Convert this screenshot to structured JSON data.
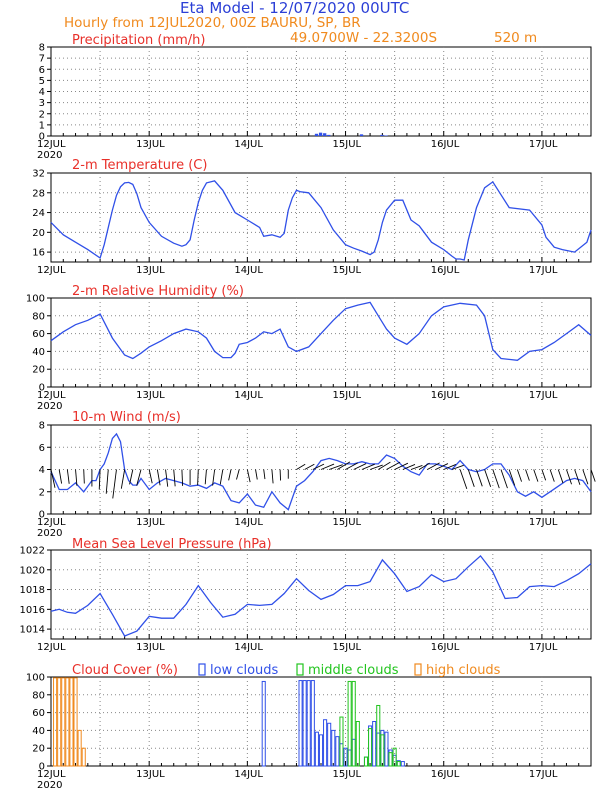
{
  "header": {
    "title": "Eta Model - 12/07/2020 00UTC",
    "line1": "Hourly from 12JUL2020, 00Z  BAURU, SP, BR",
    "coords": "49.0700W - 22.3200S",
    "elevation": "520  m"
  },
  "colors": {
    "blue": "#2b3fd6",
    "orange": "#f08a1e",
    "red": "#e8302a",
    "green": "#22c41e",
    "line": "#3050e8",
    "grid": "#888888"
  },
  "x_axis": {
    "hours_total": 132,
    "day_labels": [
      "12JUL",
      "13JUL",
      "14JUL",
      "15JUL",
      "16JUL",
      "17JUL"
    ],
    "year_label": "2020"
  },
  "chart_data": [
    {
      "id": "precip",
      "type": "bar",
      "title": "Precipitation (mm/h)",
      "ylim": [
        0,
        8
      ],
      "yticks": [
        0,
        1,
        2,
        3,
        4,
        5,
        6,
        7,
        8
      ],
      "bars": [
        [
          65,
          0.2
        ],
        [
          66,
          0.3
        ],
        [
          67,
          0.25
        ],
        [
          68,
          0.1
        ],
        [
          76,
          0.15
        ],
        [
          81,
          0.1
        ],
        [
          82,
          0.05
        ]
      ]
    },
    {
      "id": "temp",
      "type": "line",
      "title": "2-m Temperature (C)",
      "ylim": [
        14,
        32
      ],
      "yticks": [
        16,
        20,
        24,
        28,
        32
      ],
      "x": [
        0,
        3,
        6,
        9,
        12,
        13,
        14,
        15,
        16,
        17,
        18,
        19,
        20,
        21,
        22,
        24,
        27,
        30,
        32,
        33,
        34,
        35,
        36,
        37,
        38,
        40,
        42,
        45,
        48,
        50,
        51,
        52,
        54,
        56,
        57,
        58,
        59,
        60,
        61,
        63,
        66,
        69,
        72,
        74,
        76,
        78,
        79,
        80,
        81,
        82,
        84,
        86,
        88,
        90,
        93,
        96,
        98,
        99,
        100,
        101,
        102,
        104,
        106,
        108,
        112,
        117,
        120,
        121,
        122,
        123,
        125,
        128,
        131,
        132
      ],
      "values": [
        22,
        19.5,
        18,
        16.5,
        14.8,
        17.5,
        21,
        24.5,
        27.5,
        29.2,
        30,
        30.1,
        29.7,
        27.8,
        25,
        22,
        19.2,
        17.8,
        17.2,
        17.5,
        18.5,
        22.5,
        26,
        28.5,
        30,
        30.4,
        28.5,
        24,
        22.5,
        21.5,
        21,
        19.2,
        19.5,
        19,
        19.8,
        24.5,
        27,
        28.5,
        28.2,
        28,
        25,
        20.5,
        17.5,
        16.8,
        16.2,
        15.5,
        16,
        18.5,
        22,
        24.5,
        26.5,
        26.5,
        22.5,
        21.3,
        18,
        16.5,
        15.2,
        14.6,
        14.6,
        14.4,
        18.5,
        25,
        29,
        30.2,
        25,
        24.5,
        21.5,
        19,
        18,
        17,
        16.5,
        16,
        18,
        20.5
      ]
    },
    {
      "id": "rh",
      "type": "line",
      "title": "2-m Relative Humidity (%)",
      "ylim": [
        0,
        100
      ],
      "yticks": [
        0,
        20,
        40,
        60,
        80,
        100
      ],
      "x": [
        0,
        3,
        6,
        9,
        12,
        15,
        18,
        20,
        22,
        24,
        27,
        30,
        33,
        36,
        38,
        40,
        42,
        44,
        45,
        46,
        48,
        50,
        52,
        54,
        56,
        58,
        60,
        63,
        66,
        69,
        72,
        75,
        78,
        80,
        82,
        84,
        87,
        90,
        93,
        96,
        100,
        104,
        106,
        108,
        110,
        114,
        117,
        120,
        123,
        126,
        129,
        132
      ],
      "values": [
        52,
        62,
        70,
        75,
        82,
        55,
        36,
        32,
        38,
        45,
        52,
        60,
        65,
        62,
        55,
        40,
        33,
        33,
        38,
        48,
        50,
        55,
        62,
        60,
        65,
        45,
        40,
        45,
        60,
        75,
        88,
        92,
        95,
        80,
        65,
        55,
        48,
        60,
        80,
        90,
        94,
        92,
        80,
        42,
        32,
        30,
        40,
        42,
        50,
        60,
        70,
        58
      ]
    },
    {
      "id": "wind",
      "type": "line",
      "title": "10-m Wind (m/s)",
      "ylim": [
        0,
        8
      ],
      "yticks": [
        0,
        2,
        4,
        6,
        8
      ],
      "x": [
        0,
        2,
        4,
        6,
        8,
        9,
        10,
        11,
        12,
        13,
        14,
        15,
        16,
        17,
        18,
        19,
        20,
        21,
        22,
        24,
        26,
        28,
        30,
        32,
        34,
        36,
        38,
        40,
        42,
        44,
        46,
        48,
        50,
        52,
        54,
        56,
        58,
        60,
        62,
        64,
        66,
        68,
        70,
        72,
        74,
        76,
        78,
        80,
        82,
        84,
        86,
        88,
        90,
        92,
        94,
        96,
        98,
        100,
        102,
        104,
        106,
        108,
        110,
        112,
        114,
        116,
        118,
        120,
        122,
        124,
        126,
        128,
        130,
        132
      ],
      "values": [
        3.8,
        2.2,
        2.2,
        2.8,
        2.0,
        2.5,
        3.0,
        3.0,
        4.0,
        4.5,
        5.5,
        6.8,
        7.2,
        6.5,
        4.0,
        3.0,
        2.6,
        2.6,
        3.2,
        2.2,
        2.8,
        3.2,
        3.0,
        2.8,
        2.5,
        2.6,
        2.3,
        2.8,
        2.5,
        1.2,
        1.0,
        1.8,
        0.8,
        0.6,
        2.0,
        1.0,
        0.4,
        2.5,
        3.0,
        3.8,
        4.8,
        5.0,
        4.8,
        4.5,
        4.5,
        4.7,
        4.5,
        4.5,
        5.3,
        5.0,
        4.3,
        3.8,
        3.5,
        4.5,
        4.5,
        4.3,
        4.0,
        4.8,
        4.0,
        3.8,
        4.0,
        4.5,
        4.5,
        3.5,
        2.0,
        1.6,
        2.0,
        1.5,
        2.0,
        2.5,
        3.0,
        3.2,
        3.0,
        2.0
      ]
    },
    {
      "id": "mslp",
      "type": "line",
      "title": "Mean Sea Level Pressure (hPa)",
      "ylim": [
        1013,
        1022
      ],
      "yticks": [
        1014,
        1016,
        1018,
        1020,
        1022
      ],
      "x": [
        0,
        2,
        4,
        6,
        9,
        12,
        15,
        18,
        21,
        24,
        27,
        30,
        33,
        36,
        39,
        42,
        45,
        48,
        51,
        54,
        57,
        60,
        63,
        66,
        69,
        72,
        75,
        78,
        81,
        84,
        87,
        90,
        93,
        96,
        99,
        102,
        105,
        108,
        111,
        114,
        117,
        120,
        123,
        126,
        129,
        132
      ],
      "values": [
        1015.8,
        1016,
        1015.7,
        1015.6,
        1016.4,
        1017.6,
        1015.5,
        1013.3,
        1013.8,
        1015.3,
        1015.1,
        1015.1,
        1016.5,
        1018.4,
        1016.7,
        1015.2,
        1015.5,
        1016.5,
        1016.4,
        1016.5,
        1017.6,
        1019.1,
        1017.9,
        1017,
        1017.5,
        1018.4,
        1018.4,
        1018.8,
        1021,
        1019.6,
        1017.8,
        1018.3,
        1019.5,
        1018.8,
        1019.1,
        1020.3,
        1021.4,
        1019.8,
        1017.1,
        1017.2,
        1018.3,
        1018.4,
        1018.3,
        1018.9,
        1019.6,
        1020.6
      ]
    },
    {
      "id": "cloud",
      "type": "bar",
      "title": "Cloud Cover (%)",
      "legend": {
        "low": "low clouds",
        "middle": "middle clouds",
        "high": "high clouds"
      },
      "ylim": [
        0,
        100
      ],
      "yticks": [
        0,
        20,
        40,
        60,
        80,
        100
      ],
      "bars": {
        "high": [
          [
            1,
            99
          ],
          [
            2,
            99
          ],
          [
            3,
            99
          ],
          [
            4,
            99
          ],
          [
            5,
            99
          ],
          [
            6,
            99
          ],
          [
            7,
            40
          ],
          [
            8,
            20
          ]
        ],
        "low": [
          [
            52,
            95
          ],
          [
            61,
            96
          ],
          [
            62,
            96
          ],
          [
            63,
            96
          ],
          [
            64,
            96
          ],
          [
            65,
            38
          ],
          [
            66,
            35
          ],
          [
            67,
            52
          ],
          [
            68,
            48
          ],
          [
            69,
            40
          ],
          [
            70,
            33
          ],
          [
            71,
            25
          ],
          [
            72,
            20
          ],
          [
            73,
            18
          ],
          [
            74,
            30
          ],
          [
            77,
            10
          ],
          [
            78,
            45
          ],
          [
            79,
            50
          ],
          [
            80,
            37
          ],
          [
            81,
            40
          ],
          [
            82,
            38
          ],
          [
            83,
            18
          ],
          [
            84,
            12
          ],
          [
            85,
            6
          ],
          [
            86,
            5
          ]
        ],
        "middle": [
          [
            71,
            55
          ],
          [
            73,
            95
          ],
          [
            74,
            95
          ],
          [
            75,
            50
          ],
          [
            77,
            10
          ],
          [
            78,
            42
          ],
          [
            80,
            68
          ],
          [
            81,
            35
          ],
          [
            83,
            15
          ],
          [
            84,
            20
          ],
          [
            85,
            5
          ]
        ]
      }
    }
  ]
}
